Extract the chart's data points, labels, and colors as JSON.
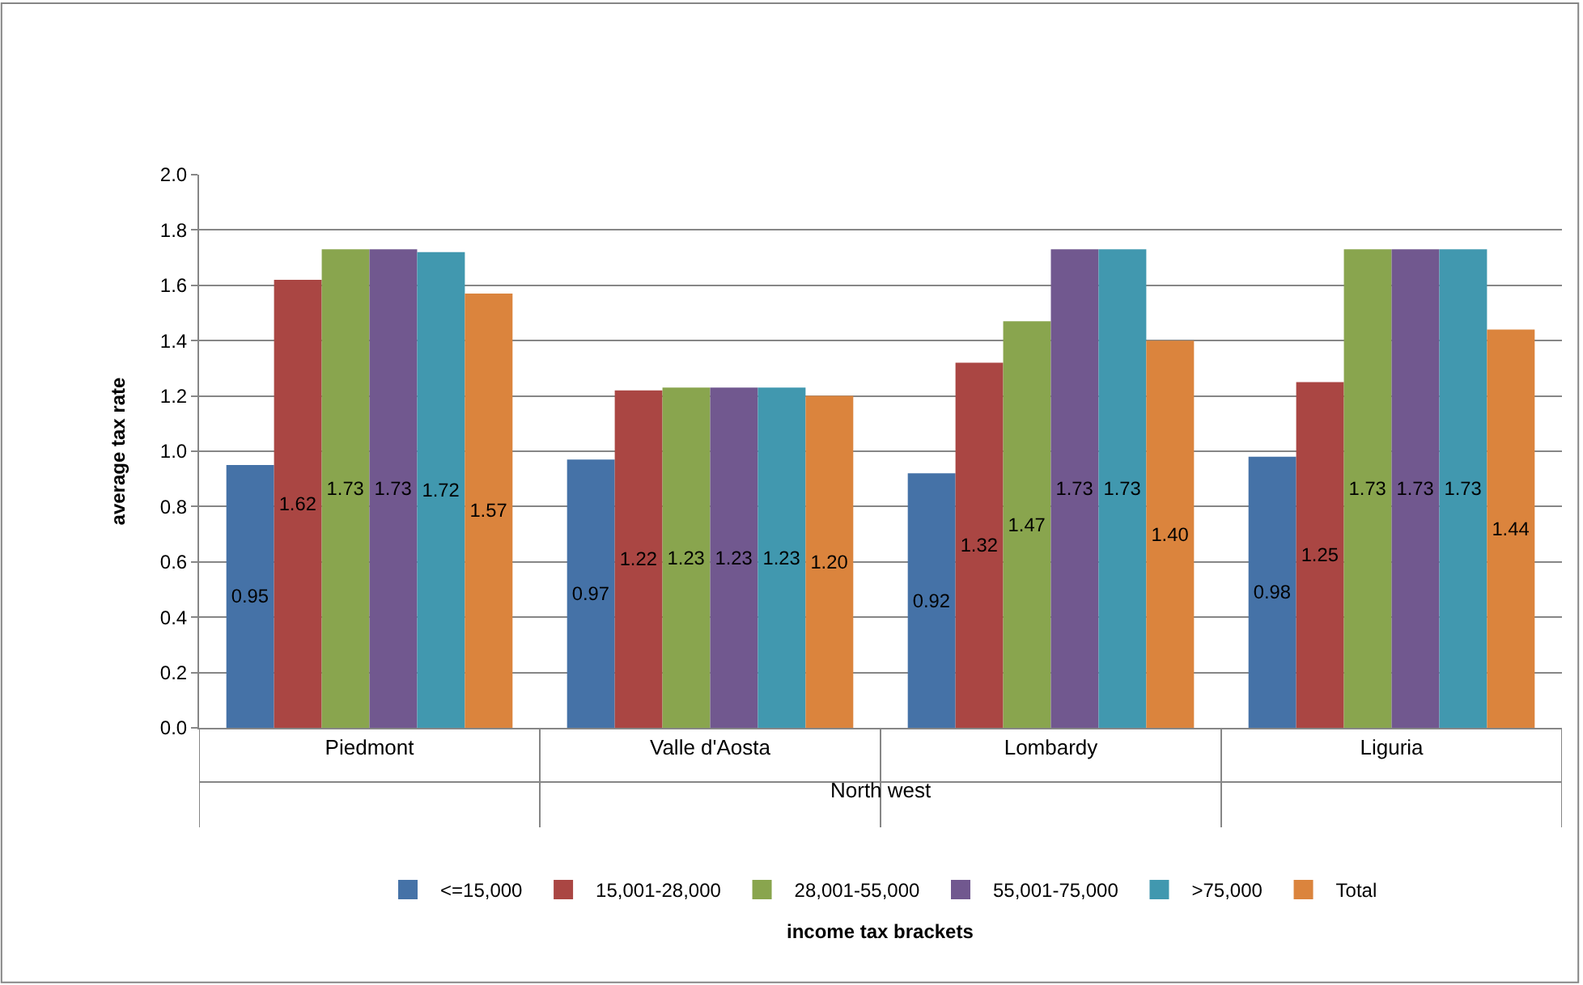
{
  "chart_data": {
    "type": "bar",
    "ylabel": "average tax rate",
    "categories": [
      "Piedmont",
      "Valle d'Aosta",
      "Lombardy",
      "Liguria"
    ],
    "series": [
      {
        "name": "<=15,000",
        "color": "#4572a7",
        "values": [
          0.95,
          0.97,
          0.92,
          0.98
        ],
        "value_labels": [
          "0.95",
          "0.97",
          "0.92",
          "0.98"
        ]
      },
      {
        "name": "15,001-28,000",
        "color": "#aa4643",
        "values": [
          1.62,
          1.22,
          1.32,
          1.25
        ],
        "value_labels": [
          "1.62",
          "1.22",
          "1.32",
          "1.25"
        ]
      },
      {
        "name": "28,001-55,000",
        "color": "#89a54e",
        "values": [
          1.73,
          1.23,
          1.47,
          1.73
        ],
        "value_labels": [
          "1.73",
          "1.23",
          "1.47",
          "1.73"
        ]
      },
      {
        "name": "55,001-75,000",
        "color": "#71588f",
        "values": [
          1.73,
          1.23,
          1.73,
          1.73
        ],
        "value_labels": [
          "1.73",
          "1.23",
          "1.73",
          "1.73"
        ]
      },
      {
        "name": ">75,000",
        "color": "#4198af",
        "values": [
          1.72,
          1.23,
          1.73,
          1.73
        ],
        "value_labels": [
          "1.72",
          "1.23",
          "1.73",
          "1.73"
        ]
      },
      {
        "name": "Total",
        "color": "#db843d",
        "values": [
          1.57,
          1.2,
          1.4,
          1.44
        ],
        "value_labels": [
          "1.57",
          "1.20",
          "1.40",
          "1.44"
        ]
      }
    ],
    "ylim": [
      0,
      2
    ],
    "yticks": [
      {
        "value": 0,
        "label": "0.0"
      },
      0.2,
      0.4,
      0.6,
      0.8,
      {
        "value": 1,
        "label": "1.0"
      },
      1.2,
      1.4,
      1.6,
      1.8,
      {
        "value": 2,
        "label": "2.0"
      }
    ],
    "annotations": [
      "North west",
      "income tax brackets"
    ],
    "grid": "y",
    "legend": "bottom"
  }
}
